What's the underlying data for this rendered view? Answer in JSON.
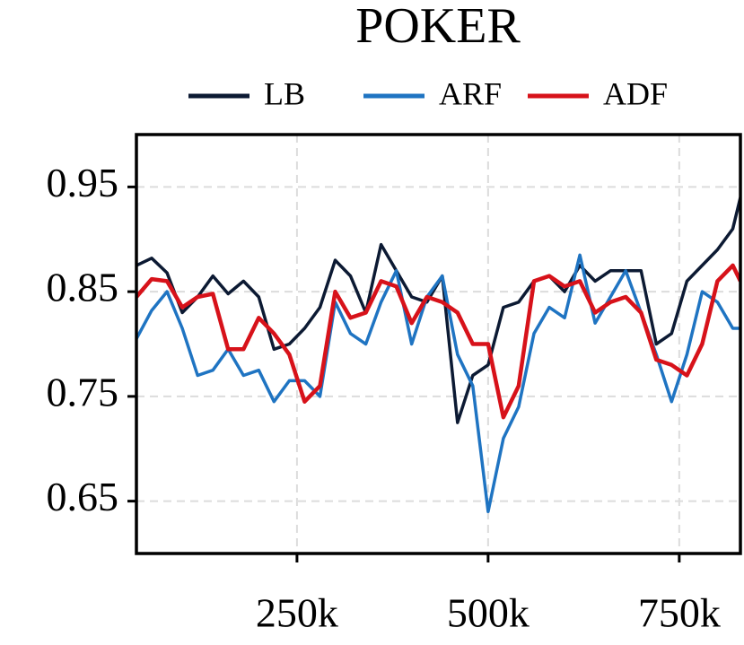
{
  "chart_data": {
    "type": "line",
    "title": "POKER",
    "x": [
      40000,
      60000,
      80000,
      100000,
      120000,
      140000,
      160000,
      180000,
      200000,
      220000,
      240000,
      260000,
      280000,
      300000,
      320000,
      340000,
      360000,
      380000,
      400000,
      420000,
      440000,
      460000,
      480000,
      500000,
      520000,
      540000,
      560000,
      580000,
      600000,
      620000,
      640000,
      660000,
      680000,
      700000,
      720000,
      740000,
      760000,
      780000,
      800000,
      820000,
      830000
    ],
    "series": [
      {
        "name": "LB",
        "color": "#0c1a33",
        "values": [
          0.875,
          0.882,
          0.868,
          0.83,
          0.845,
          0.865,
          0.848,
          0.86,
          0.845,
          0.795,
          0.8,
          0.815,
          0.835,
          0.88,
          0.865,
          0.83,
          0.895,
          0.87,
          0.845,
          0.84,
          0.865,
          0.725,
          0.77,
          0.78,
          0.835,
          0.84,
          0.86,
          0.865,
          0.85,
          0.875,
          0.86,
          0.87,
          0.87,
          0.87,
          0.8,
          0.81,
          0.86,
          0.875,
          0.89,
          0.91,
          0.94
        ]
      },
      {
        "name": "ARF",
        "color": "#1f74c2",
        "values": [
          0.805,
          0.832,
          0.85,
          0.815,
          0.77,
          0.775,
          0.795,
          0.77,
          0.775,
          0.745,
          0.765,
          0.765,
          0.75,
          0.84,
          0.81,
          0.8,
          0.84,
          0.87,
          0.8,
          0.845,
          0.865,
          0.79,
          0.76,
          0.64,
          0.71,
          0.74,
          0.81,
          0.835,
          0.825,
          0.885,
          0.82,
          0.845,
          0.87,
          0.83,
          0.79,
          0.745,
          0.79,
          0.85,
          0.84,
          0.815,
          0.815
        ]
      },
      {
        "name": "ADF",
        "color": "#d7121a",
        "values": [
          0.845,
          0.862,
          0.86,
          0.835,
          0.845,
          0.848,
          0.795,
          0.795,
          0.825,
          0.81,
          0.79,
          0.745,
          0.76,
          0.85,
          0.825,
          0.83,
          0.86,
          0.855,
          0.82,
          0.845,
          0.84,
          0.83,
          0.8,
          0.8,
          0.73,
          0.76,
          0.86,
          0.865,
          0.855,
          0.86,
          0.83,
          0.84,
          0.845,
          0.83,
          0.785,
          0.78,
          0.77,
          0.8,
          0.86,
          0.875,
          0.86
        ]
      }
    ],
    "xlim": [
      40000,
      830000
    ],
    "xticks": [
      {
        "value": 250000,
        "label": "250k"
      },
      {
        "value": 500000,
        "label": "500k"
      },
      {
        "value": 750000,
        "label": "750k"
      }
    ],
    "ylim": [
      0.6,
      1.0
    ],
    "yticks": [
      0.65,
      0.75,
      0.85,
      0.95
    ],
    "grid": true
  }
}
